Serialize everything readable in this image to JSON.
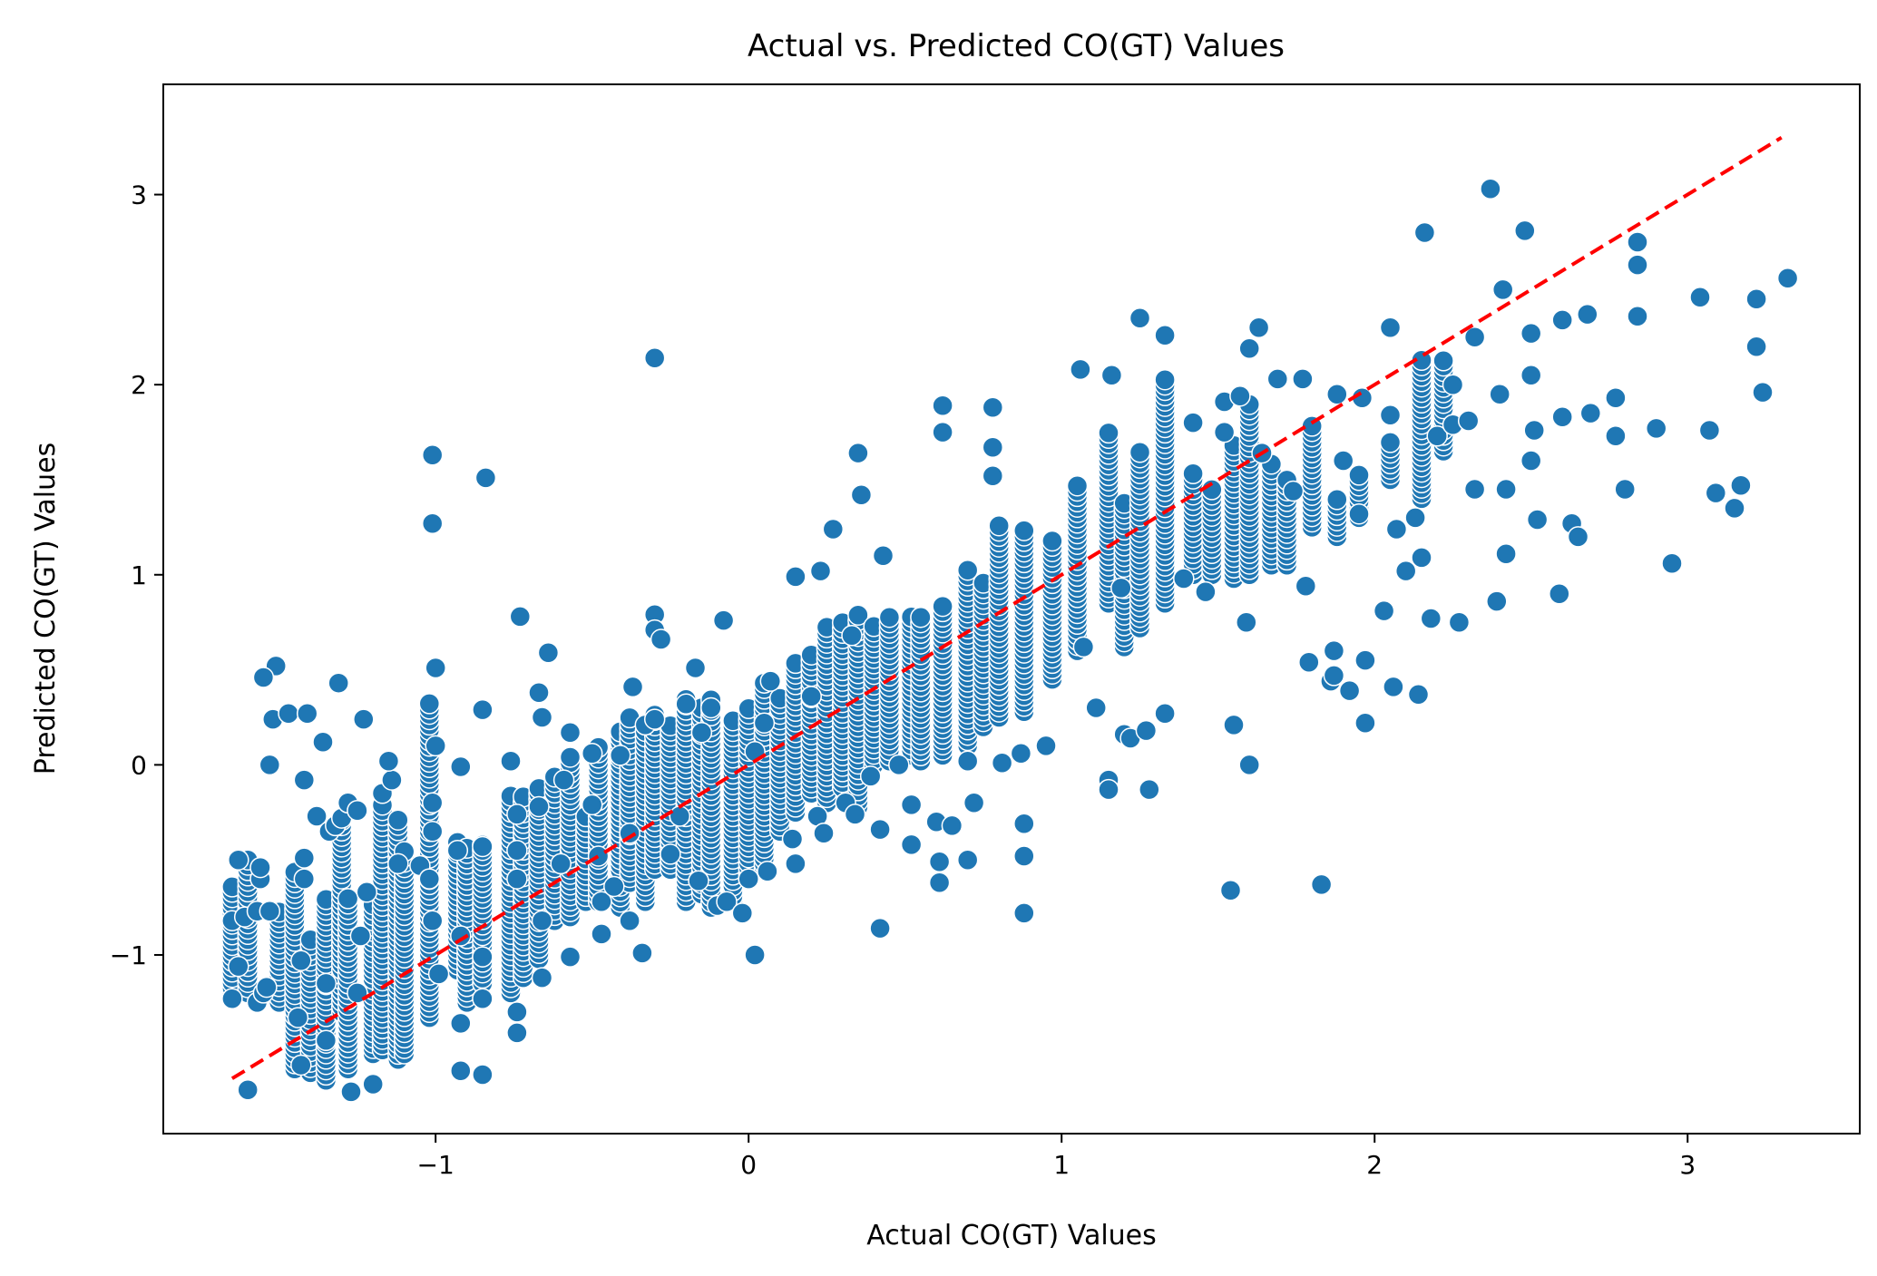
{
  "chart_data": {
    "type": "scatter",
    "title": "Actual vs. Predicted CO(GT) Values",
    "xlabel": "Actual CO(GT) Values",
    "ylabel": "Predicted CO(GT) Values",
    "xlim": [
      -1.87,
      3.55
    ],
    "ylim": [
      -1.94,
      3.58
    ],
    "xticks": [
      -1,
      0,
      1,
      2,
      3
    ],
    "yticks": [
      -1,
      0,
      1,
      2,
      3
    ],
    "xtick_labels": [
      "−1",
      "0",
      "1",
      "2",
      "3"
    ],
    "ytick_labels": [
      "−1",
      "0",
      "1",
      "2",
      "3"
    ],
    "grid": false,
    "legend": "none",
    "colors": {
      "points": "#1f77b4",
      "point_edge": "#ffffff",
      "reference_line": "#ff0000"
    },
    "reference_line": {
      "style": "dashed",
      "from": [
        -1.65,
        -1.65
      ],
      "to": [
        3.3,
        3.3
      ]
    },
    "points": [
      [
        -1.65,
        -1.23
      ],
      [
        -1.65,
        -0.82
      ],
      [
        -1.63,
        -1.06
      ],
      [
        -1.63,
        -0.5
      ],
      [
        -1.61,
        -0.8
      ],
      [
        -1.6,
        -1.71
      ],
      [
        -1.57,
        -1.25
      ],
      [
        -1.57,
        -0.77
      ],
      [
        -1.56,
        -0.6
      ],
      [
        -1.56,
        -0.54
      ],
      [
        -1.55,
        -1.2
      ],
      [
        -1.54,
        -1.17
      ],
      [
        -1.53,
        -0.77
      ],
      [
        -1.52,
        0.24
      ],
      [
        -1.53,
        0.0
      ],
      [
        -1.51,
        0.52
      ],
      [
        -1.55,
        0.46
      ],
      [
        -1.47,
        0.27
      ],
      [
        -1.44,
        -1.33
      ],
      [
        -1.43,
        -1.58
      ],
      [
        -1.43,
        -1.03
      ],
      [
        -1.42,
        -0.49
      ],
      [
        -1.42,
        -0.6
      ],
      [
        -1.42,
        -0.08
      ],
      [
        -1.41,
        0.27
      ],
      [
        -1.38,
        -0.27
      ],
      [
        -1.36,
        0.12
      ],
      [
        -1.35,
        -1.15
      ],
      [
        -1.35,
        -1.45
      ],
      [
        -1.34,
        -0.35
      ],
      [
        -1.32,
        -0.32
      ],
      [
        -1.31,
        0.43
      ],
      [
        -1.3,
        -0.28
      ],
      [
        -1.28,
        -0.2
      ],
      [
        -1.25,
        -0.24
      ],
      [
        -1.27,
        -1.72
      ],
      [
        -1.25,
        -1.2
      ],
      [
        -1.24,
        -0.9
      ],
      [
        -1.22,
        -0.67
      ],
      [
        -1.2,
        -1.68
      ],
      [
        -1.23,
        0.24
      ],
      [
        -1.17,
        -0.15
      ],
      [
        -1.14,
        -0.08
      ],
      [
        -1.15,
        0.02
      ],
      [
        -1.12,
        -0.52
      ],
      [
        -1.05,
        -0.53
      ],
      [
        -1.01,
        -0.82
      ],
      [
        -1.02,
        -0.6
      ],
      [
        -1.01,
        -0.35
      ],
      [
        -1.01,
        -0.2
      ],
      [
        -1.0,
        0.1
      ],
      [
        -1.0,
        0.51
      ],
      [
        -1.01,
        1.27
      ],
      [
        -1.01,
        1.63
      ],
      [
        -0.99,
        -1.1
      ],
      [
        -0.93,
        -0.45
      ],
      [
        -0.92,
        -0.9
      ],
      [
        -0.92,
        -1.36
      ],
      [
        -0.92,
        -1.61
      ],
      [
        -0.92,
        -0.01
      ],
      [
        -0.85,
        -0.43
      ],
      [
        -0.84,
        1.51
      ],
      [
        -0.85,
        0.29
      ],
      [
        -0.85,
        -1.01
      ],
      [
        -0.85,
        -1.23
      ],
      [
        -0.85,
        -1.63
      ],
      [
        -0.76,
        0.02
      ],
      [
        -0.74,
        -0.26
      ],
      [
        -0.74,
        -0.45
      ],
      [
        -0.74,
        -0.6
      ],
      [
        -0.74,
        -1.3
      ],
      [
        -0.74,
        -1.41
      ],
      [
        -0.73,
        0.78
      ],
      [
        -0.67,
        0.38
      ],
      [
        -0.66,
        0.25
      ],
      [
        -0.67,
        -0.22
      ],
      [
        -0.66,
        -0.82
      ],
      [
        -0.66,
        -1.12
      ],
      [
        -0.64,
        0.59
      ],
      [
        -0.6,
        -0.52
      ],
      [
        -0.59,
        -0.08
      ],
      [
        -0.57,
        -1.01
      ],
      [
        -0.57,
        0.17
      ],
      [
        -0.5,
        -0.21
      ],
      [
        -0.5,
        0.06
      ],
      [
        -0.48,
        -0.48
      ],
      [
        -0.47,
        -0.72
      ],
      [
        -0.47,
        -0.89
      ],
      [
        -0.43,
        -0.64
      ],
      [
        -0.41,
        0.05
      ],
      [
        -0.38,
        -0.36
      ],
      [
        -0.38,
        -0.82
      ],
      [
        -0.37,
        0.41
      ],
      [
        -0.34,
        -0.99
      ],
      [
        -0.33,
        0.21
      ],
      [
        -0.3,
        0.24
      ],
      [
        -0.3,
        0.79
      ],
      [
        -0.3,
        0.71
      ],
      [
        -0.28,
        0.66
      ],
      [
        -0.3,
        2.14
      ],
      [
        -0.25,
        -0.47
      ],
      [
        -0.22,
        -0.27
      ],
      [
        -0.2,
        0.32
      ],
      [
        -0.17,
        0.51
      ],
      [
        -0.16,
        -0.61
      ],
      [
        -0.15,
        0.17
      ],
      [
        -0.12,
        0.3
      ],
      [
        -0.1,
        -0.74
      ],
      [
        -0.08,
        0.76
      ],
      [
        -0.07,
        -0.72
      ],
      [
        -0.02,
        -0.78
      ],
      [
        0.0,
        -0.6
      ],
      [
        0.02,
        0.07
      ],
      [
        0.02,
        -1.0
      ],
      [
        0.05,
        0.22
      ],
      [
        0.06,
        -0.56
      ],
      [
        0.07,
        0.44
      ],
      [
        0.14,
        -0.39
      ],
      [
        0.15,
        -0.52
      ],
      [
        0.15,
        0.99
      ],
      [
        0.2,
        0.36
      ],
      [
        0.22,
        -0.27
      ],
      [
        0.23,
        1.02
      ],
      [
        0.24,
        -0.36
      ],
      [
        0.27,
        1.24
      ],
      [
        0.31,
        -0.2
      ],
      [
        0.33,
        0.68
      ],
      [
        0.34,
        -0.26
      ],
      [
        0.35,
        1.64
      ],
      [
        0.36,
        1.42
      ],
      [
        0.39,
        -0.06
      ],
      [
        0.42,
        -0.34
      ],
      [
        0.42,
        -0.86
      ],
      [
        0.43,
        1.1
      ],
      [
        0.48,
        0.0
      ],
      [
        0.52,
        -0.21
      ],
      [
        0.52,
        -0.42
      ],
      [
        0.6,
        -0.3
      ],
      [
        0.61,
        -0.51
      ],
      [
        0.61,
        -0.62
      ],
      [
        0.62,
        1.75
      ],
      [
        0.62,
        1.89
      ],
      [
        0.65,
        -0.32
      ],
      [
        0.7,
        -0.5
      ],
      [
        0.7,
        0.02
      ],
      [
        0.72,
        -0.2
      ],
      [
        0.78,
        1.88
      ],
      [
        0.78,
        1.67
      ],
      [
        0.78,
        1.52
      ],
      [
        0.81,
        0.01
      ],
      [
        0.87,
        0.06
      ],
      [
        0.88,
        -0.31
      ],
      [
        0.88,
        -0.48
      ],
      [
        0.88,
        -0.78
      ],
      [
        0.95,
        0.1
      ],
      [
        1.06,
        2.08
      ],
      [
        1.07,
        0.62
      ],
      [
        1.11,
        0.3
      ],
      [
        1.15,
        -0.08
      ],
      [
        1.15,
        -0.13
      ],
      [
        1.16,
        2.05
      ],
      [
        1.19,
        0.93
      ],
      [
        1.2,
        0.16
      ],
      [
        1.22,
        0.14
      ],
      [
        1.25,
        2.35
      ],
      [
        1.27,
        0.18
      ],
      [
        1.28,
        -0.13
      ],
      [
        1.33,
        2.26
      ],
      [
        1.33,
        0.27
      ],
      [
        1.39,
        0.98
      ],
      [
        1.42,
        1.8
      ],
      [
        1.46,
        0.91
      ],
      [
        1.52,
        1.91
      ],
      [
        1.52,
        1.75
      ],
      [
        1.54,
        -0.66
      ],
      [
        1.55,
        0.21
      ],
      [
        1.57,
        1.94
      ],
      [
        1.59,
        0.75
      ],
      [
        1.6,
        0.0
      ],
      [
        1.6,
        2.19
      ],
      [
        1.63,
        2.3
      ],
      [
        1.64,
        1.64
      ],
      [
        1.69,
        2.03
      ],
      [
        1.74,
        1.44
      ],
      [
        1.77,
        2.03
      ],
      [
        1.78,
        0.94
      ],
      [
        1.79,
        0.54
      ],
      [
        1.83,
        -0.63
      ],
      [
        1.86,
        0.44
      ],
      [
        1.87,
        0.47
      ],
      [
        1.87,
        0.6
      ],
      [
        1.88,
        1.95
      ],
      [
        1.9,
        1.6
      ],
      [
        1.92,
        0.39
      ],
      [
        1.95,
        1.32
      ],
      [
        1.96,
        1.93
      ],
      [
        1.97,
        0.55
      ],
      [
        1.97,
        0.22
      ],
      [
        2.03,
        0.81
      ],
      [
        2.05,
        1.84
      ],
      [
        2.05,
        2.3
      ],
      [
        2.06,
        0.41
      ],
      [
        2.07,
        1.24
      ],
      [
        2.1,
        1.02
      ],
      [
        2.13,
        1.3
      ],
      [
        2.14,
        0.37
      ],
      [
        2.15,
        1.09
      ],
      [
        2.16,
        2.8
      ],
      [
        2.18,
        0.77
      ],
      [
        2.2,
        1.73
      ],
      [
        2.25,
        1.79
      ],
      [
        2.25,
        2.0
      ],
      [
        2.27,
        0.75
      ],
      [
        2.3,
        1.81
      ],
      [
        2.32,
        2.25
      ],
      [
        2.32,
        1.45
      ],
      [
        2.37,
        3.03
      ],
      [
        2.39,
        0.86
      ],
      [
        2.4,
        1.95
      ],
      [
        2.41,
        2.5
      ],
      [
        2.42,
        1.11
      ],
      [
        2.42,
        1.45
      ],
      [
        2.48,
        2.81
      ],
      [
        2.5,
        2.27
      ],
      [
        2.5,
        2.05
      ],
      [
        2.51,
        1.76
      ],
      [
        2.5,
        1.6
      ],
      [
        2.52,
        1.29
      ],
      [
        2.59,
        0.9
      ],
      [
        2.6,
        2.34
      ],
      [
        2.6,
        1.83
      ],
      [
        2.63,
        1.27
      ],
      [
        2.65,
        1.2
      ],
      [
        2.68,
        2.37
      ],
      [
        2.69,
        1.85
      ],
      [
        2.77,
        1.93
      ],
      [
        2.77,
        1.73
      ],
      [
        2.8,
        1.45
      ],
      [
        2.84,
        2.75
      ],
      [
        2.84,
        2.63
      ],
      [
        2.84,
        2.36
      ],
      [
        2.9,
        1.77
      ],
      [
        2.95,
        1.06
      ],
      [
        3.04,
        2.46
      ],
      [
        3.07,
        1.76
      ],
      [
        3.09,
        1.43
      ],
      [
        3.15,
        1.35
      ],
      [
        3.17,
        1.47
      ],
      [
        3.22,
        2.45
      ],
      [
        3.22,
        2.2
      ],
      [
        3.24,
        1.96
      ],
      [
        3.32,
        2.56
      ]
    ],
    "clusters": [
      {
        "x": -1.65,
        "y_lo": -1.23,
        "y_hi": -0.62
      },
      {
        "x": -1.6,
        "y_lo": -1.2,
        "y_hi": -0.5
      },
      {
        "x": -1.5,
        "y_lo": -1.25,
        "y_hi": -0.75
      },
      {
        "x": -1.45,
        "y_lo": -1.6,
        "y_hi": -0.55
      },
      {
        "x": -1.4,
        "y_lo": -1.62,
        "y_hi": -0.9
      },
      {
        "x": -1.35,
        "y_lo": -1.66,
        "y_hi": -0.7
      },
      {
        "x": -1.3,
        "y_lo": -1.3,
        "y_hi": -0.28
      },
      {
        "x": -1.28,
        "y_lo": -1.6,
        "y_hi": -0.68
      },
      {
        "x": -1.2,
        "y_lo": -1.52,
        "y_hi": -0.72
      },
      {
        "x": -1.17,
        "y_lo": -1.5,
        "y_hi": -0.2
      },
      {
        "x": -1.12,
        "y_lo": -1.55,
        "y_hi": -0.27
      },
      {
        "x": -1.1,
        "y_lo": -1.52,
        "y_hi": -0.45
      },
      {
        "x": -1.02,
        "y_lo": -1.33,
        "y_hi": 0.33
      },
      {
        "x": -0.93,
        "y_lo": -1.08,
        "y_hi": -0.4
      },
      {
        "x": -0.9,
        "y_lo": -1.25,
        "y_hi": -0.42
      },
      {
        "x": -0.85,
        "y_lo": -1.15,
        "y_hi": -0.4
      },
      {
        "x": -0.76,
        "y_lo": -1.2,
        "y_hi": -0.15
      },
      {
        "x": -0.72,
        "y_lo": -1.12,
        "y_hi": -0.15
      },
      {
        "x": -0.67,
        "y_lo": -1.02,
        "y_hi": -0.12
      },
      {
        "x": -0.62,
        "y_lo": -0.82,
        "y_hi": -0.05
      },
      {
        "x": -0.57,
        "y_lo": -0.8,
        "y_hi": 0.05
      },
      {
        "x": -0.52,
        "y_lo": -0.72,
        "y_hi": -0.25
      },
      {
        "x": -0.48,
        "y_lo": -0.72,
        "y_hi": 0.1
      },
      {
        "x": -0.41,
        "y_lo": -0.75,
        "y_hi": 0.2
      },
      {
        "x": -0.38,
        "y_lo": -0.62,
        "y_hi": 0.25
      },
      {
        "x": -0.33,
        "y_lo": -0.72,
        "y_hi": 0.18
      },
      {
        "x": -0.3,
        "y_lo": -0.55,
        "y_hi": 0.28
      },
      {
        "x": -0.25,
        "y_lo": -0.55,
        "y_hi": 0.22
      },
      {
        "x": -0.2,
        "y_lo": -0.72,
        "y_hi": 0.35
      },
      {
        "x": -0.15,
        "y_lo": -0.68,
        "y_hi": 0.3
      },
      {
        "x": -0.12,
        "y_lo": -0.75,
        "y_hi": 0.35
      },
      {
        "x": -0.05,
        "y_lo": -0.72,
        "y_hi": 0.25
      },
      {
        "x": 0.0,
        "y_lo": -0.6,
        "y_hi": 0.3
      },
      {
        "x": 0.05,
        "y_lo": -0.55,
        "y_hi": 0.45
      },
      {
        "x": 0.1,
        "y_lo": -0.35,
        "y_hi": 0.35
      },
      {
        "x": 0.15,
        "y_lo": -0.25,
        "y_hi": 0.55
      },
      {
        "x": 0.2,
        "y_lo": -0.15,
        "y_hi": 0.6
      },
      {
        "x": 0.25,
        "y_lo": -0.2,
        "y_hi": 0.75
      },
      {
        "x": 0.3,
        "y_lo": -0.12,
        "y_hi": 0.75
      },
      {
        "x": 0.35,
        "y_lo": -0.22,
        "y_hi": 0.8
      },
      {
        "x": 0.4,
        "y_lo": 0.0,
        "y_hi": 0.75
      },
      {
        "x": 0.45,
        "y_lo": 0.02,
        "y_hi": 0.8
      },
      {
        "x": 0.52,
        "y_lo": 0.05,
        "y_hi": 0.78
      },
      {
        "x": 0.55,
        "y_lo": 0.02,
        "y_hi": 0.78
      },
      {
        "x": 0.62,
        "y_lo": 0.05,
        "y_hi": 0.85
      },
      {
        "x": 0.7,
        "y_lo": 0.1,
        "y_hi": 1.05
      },
      {
        "x": 0.75,
        "y_lo": 0.2,
        "y_hi": 0.98
      },
      {
        "x": 0.8,
        "y_lo": 0.25,
        "y_hi": 1.28
      },
      {
        "x": 0.88,
        "y_lo": 0.28,
        "y_hi": 1.25
      },
      {
        "x": 0.97,
        "y_lo": 0.45,
        "y_hi": 1.2
      },
      {
        "x": 1.05,
        "y_lo": 0.6,
        "y_hi": 1.48
      },
      {
        "x": 1.15,
        "y_lo": 0.85,
        "y_hi": 1.75
      },
      {
        "x": 1.2,
        "y_lo": 0.62,
        "y_hi": 1.38
      },
      {
        "x": 1.25,
        "y_lo": 0.72,
        "y_hi": 1.65
      },
      {
        "x": 1.33,
        "y_lo": 0.85,
        "y_hi": 2.05
      },
      {
        "x": 1.42,
        "y_lo": 1.0,
        "y_hi": 1.55
      },
      {
        "x": 1.48,
        "y_lo": 1.0,
        "y_hi": 1.45
      },
      {
        "x": 1.55,
        "y_lo": 0.98,
        "y_hi": 1.68
      },
      {
        "x": 1.6,
        "y_lo": 1.0,
        "y_hi": 1.9
      },
      {
        "x": 1.67,
        "y_lo": 1.05,
        "y_hi": 1.6
      },
      {
        "x": 1.72,
        "y_lo": 1.05,
        "y_hi": 1.5
      },
      {
        "x": 1.8,
        "y_lo": 1.25,
        "y_hi": 1.8
      },
      {
        "x": 1.88,
        "y_lo": 1.2,
        "y_hi": 1.42
      },
      {
        "x": 1.95,
        "y_lo": 1.3,
        "y_hi": 1.55
      },
      {
        "x": 2.05,
        "y_lo": 1.5,
        "y_hi": 1.72
      },
      {
        "x": 2.15,
        "y_lo": 1.4,
        "y_hi": 2.15
      },
      {
        "x": 2.22,
        "y_lo": 1.65,
        "y_hi": 2.15
      }
    ]
  }
}
